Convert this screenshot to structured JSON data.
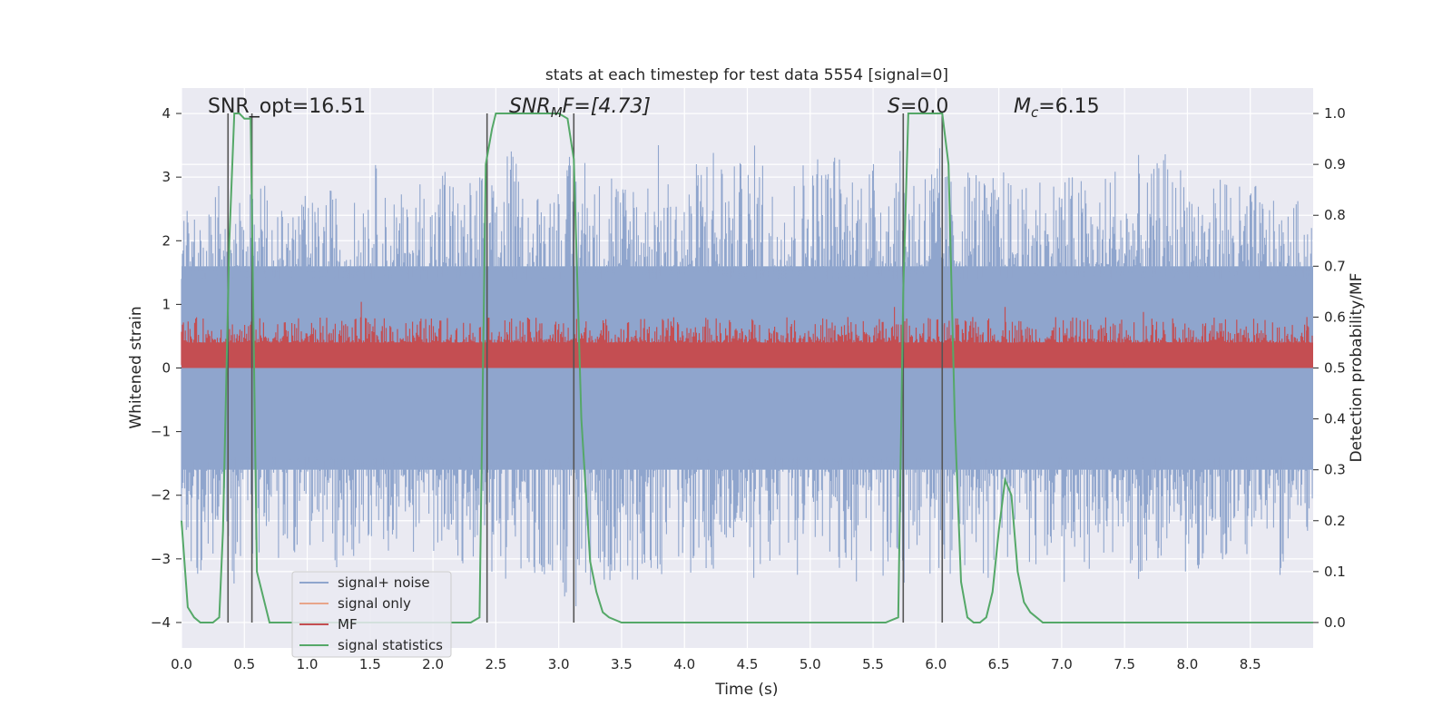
{
  "chart_data": {
    "type": "line",
    "title": "stats at each timestep for test data 5554 [signal=0]",
    "xlabel": "Time (s)",
    "ylabel_left": "Whitened strain",
    "ylabel_right": "Detection probability/MF",
    "xlim": [
      0.0,
      9.0
    ],
    "ylim_left": [
      -4.4,
      4.4
    ],
    "ylim_right": [
      -0.05,
      1.05
    ],
    "grid": true,
    "legend_position": "lower-left",
    "x_ticks": [
      "0.0",
      "0.5",
      "1.0",
      "1.5",
      "2.0",
      "2.5",
      "3.0",
      "3.5",
      "4.0",
      "4.5",
      "5.0",
      "5.5",
      "6.0",
      "6.5",
      "7.0",
      "7.5",
      "8.0",
      "8.5"
    ],
    "y_ticks_left": [
      "−4",
      "−3",
      "−2",
      "−1",
      "0",
      "1",
      "2",
      "3",
      "4"
    ],
    "y_ticks_right": [
      "0.0",
      "0.1",
      "0.2",
      "0.3",
      "0.4",
      "0.5",
      "0.6",
      "0.7",
      "0.8",
      "0.9",
      "1.0"
    ],
    "annotations": {
      "snr_opt": "SNR_opt=16.51",
      "snr_mf_base": "SNR",
      "snr_mf_sub": "M",
      "snr_mf_rest": "F=[4.73]",
      "s_base": "S",
      "s_rest": "=0.0",
      "mc_base": "M",
      "mc_sub": "c",
      "mc_rest": "=6.15"
    },
    "series": [
      {
        "name": "signal+ noise",
        "color": "#8fa5cd",
        "envelope_note": "noise samples, upper band",
        "band_upper": [
          [
            0.0,
            2.5
          ],
          [
            0.1,
            3.2
          ],
          [
            0.2,
            2.6
          ],
          [
            0.3,
            2.9
          ],
          [
            0.4,
            2.6
          ],
          [
            0.5,
            2.8
          ],
          [
            0.6,
            3.3
          ],
          [
            0.7,
            2.7
          ],
          [
            0.8,
            2.5
          ],
          [
            0.9,
            2.8
          ],
          [
            1.0,
            2.7
          ],
          [
            1.1,
            2.6
          ],
          [
            1.2,
            2.9
          ],
          [
            1.3,
            2.5
          ],
          [
            1.4,
            2.7
          ],
          [
            1.5,
            3.6
          ],
          [
            1.6,
            2.8
          ],
          [
            1.7,
            2.9
          ],
          [
            1.8,
            2.6
          ],
          [
            1.9,
            3.1
          ],
          [
            2.0,
            2.9
          ],
          [
            2.1,
            3.5
          ],
          [
            2.2,
            2.8
          ],
          [
            2.3,
            3.0
          ],
          [
            2.4,
            3.3
          ],
          [
            2.5,
            2.8
          ],
          [
            2.6,
            3.8
          ],
          [
            2.7,
            2.9
          ],
          [
            2.8,
            2.7
          ],
          [
            2.9,
            3.2
          ],
          [
            3.0,
            3.1
          ],
          [
            3.1,
            3.4
          ],
          [
            3.2,
            3.7
          ],
          [
            3.3,
            2.8
          ],
          [
            3.4,
            3.9
          ],
          [
            3.5,
            3.0
          ],
          [
            3.6,
            3.4
          ],
          [
            3.7,
            3.1
          ],
          [
            3.8,
            3.6
          ],
          [
            3.9,
            2.8
          ],
          [
            4.0,
            3.0
          ],
          [
            4.1,
            3.3
          ],
          [
            4.2,
            3.9
          ],
          [
            4.3,
            3.6
          ],
          [
            4.4,
            3.2
          ],
          [
            4.5,
            3.4
          ],
          [
            4.6,
            3.7
          ],
          [
            4.7,
            3.0
          ],
          [
            4.8,
            3.3
          ],
          [
            4.9,
            3.1
          ],
          [
            5.0,
            3.8
          ],
          [
            5.1,
            3.4
          ],
          [
            5.2,
            3.6
          ],
          [
            5.3,
            3.2
          ],
          [
            5.4,
            3.5
          ],
          [
            5.5,
            3.3
          ],
          [
            5.6,
            3.8
          ],
          [
            5.7,
            3.4
          ],
          [
            5.8,
            3.6
          ],
          [
            5.9,
            3.3
          ],
          [
            6.0,
            3.7
          ],
          [
            6.1,
            3.1
          ],
          [
            6.2,
            3.0
          ],
          [
            6.3,
            3.6
          ],
          [
            6.4,
            2.9
          ],
          [
            6.5,
            3.2
          ],
          [
            6.6,
            3.1
          ],
          [
            6.7,
            2.8
          ],
          [
            6.8,
            3.4
          ],
          [
            6.9,
            2.9
          ],
          [
            7.0,
            3.5
          ],
          [
            7.1,
            3.0
          ],
          [
            7.2,
            3.1
          ],
          [
            7.3,
            2.8
          ],
          [
            7.4,
            3.5
          ],
          [
            7.5,
            2.9
          ],
          [
            7.6,
            3.4
          ],
          [
            7.7,
            3.0
          ],
          [
            7.8,
            3.5
          ],
          [
            7.9,
            3.1
          ],
          [
            8.0,
            3.6
          ],
          [
            8.1,
            3.0
          ],
          [
            8.2,
            2.8
          ],
          [
            8.3,
            3.4
          ],
          [
            8.4,
            2.9
          ],
          [
            8.5,
            3.0
          ],
          [
            8.6,
            2.8
          ],
          [
            8.7,
            2.6
          ],
          [
            8.8,
            2.5
          ],
          [
            8.9,
            2.7
          ],
          [
            9.0,
            2.6
          ]
        ],
        "band_lower": [
          [
            0.0,
            -2.5
          ],
          [
            0.1,
            -3.2
          ],
          [
            0.2,
            -3.4
          ],
          [
            0.3,
            -3.1
          ],
          [
            0.4,
            -3.5
          ],
          [
            0.5,
            -2.9
          ],
          [
            0.6,
            -3.1
          ],
          [
            0.7,
            -2.6
          ],
          [
            0.8,
            -3.2
          ],
          [
            0.9,
            -2.9
          ],
          [
            1.0,
            -2.8
          ],
          [
            1.1,
            -3.0
          ],
          [
            1.2,
            -3.3
          ],
          [
            1.3,
            -3.1
          ],
          [
            1.4,
            -2.9
          ],
          [
            1.5,
            -2.7
          ],
          [
            1.6,
            -3.3
          ],
          [
            1.7,
            -2.7
          ],
          [
            1.8,
            -3.0
          ],
          [
            1.9,
            -2.8
          ],
          [
            2.0,
            -3.2
          ],
          [
            2.1,
            -2.6
          ],
          [
            2.2,
            -3.0
          ],
          [
            2.3,
            -3.5
          ],
          [
            2.4,
            -3.4
          ],
          [
            2.5,
            -3.2
          ],
          [
            2.6,
            -3.4
          ],
          [
            2.7,
            -3.6
          ],
          [
            2.8,
            -3.7
          ],
          [
            2.9,
            -3.3
          ],
          [
            3.0,
            -3.5
          ],
          [
            3.1,
            -4.0
          ],
          [
            3.2,
            -3.9
          ],
          [
            3.3,
            -3.6
          ],
          [
            3.4,
            -3.4
          ],
          [
            3.5,
            -3.2
          ],
          [
            3.6,
            -3.5
          ],
          [
            3.7,
            -3.1
          ],
          [
            3.8,
            -3.4
          ],
          [
            3.9,
            -3.0
          ],
          [
            4.0,
            -3.3
          ],
          [
            4.1,
            -3.2
          ],
          [
            4.2,
            -3.4
          ],
          [
            4.3,
            -3.0
          ],
          [
            4.4,
            -3.3
          ],
          [
            4.5,
            -3.5
          ],
          [
            4.6,
            -3.2
          ],
          [
            4.7,
            -3.4
          ],
          [
            4.8,
            -3.0
          ],
          [
            4.9,
            -3.3
          ],
          [
            5.0,
            -3.1
          ],
          [
            5.1,
            -3.4
          ],
          [
            5.2,
            -3.3
          ],
          [
            5.3,
            -3.2
          ],
          [
            5.4,
            -3.5
          ],
          [
            5.5,
            -3.2
          ],
          [
            5.6,
            -3.4
          ],
          [
            5.7,
            -3.8
          ],
          [
            5.8,
            -3.3
          ],
          [
            5.9,
            -3.6
          ],
          [
            6.0,
            -3.2
          ],
          [
            6.1,
            -3.5
          ],
          [
            6.2,
            -3.1
          ],
          [
            6.3,
            -3.3
          ],
          [
            6.4,
            -3.4
          ],
          [
            6.5,
            -3.0
          ],
          [
            6.6,
            -3.2
          ],
          [
            6.7,
            -3.0
          ],
          [
            6.8,
            -3.3
          ],
          [
            6.9,
            -3.1
          ],
          [
            7.0,
            -3.4
          ],
          [
            7.1,
            -3.2
          ],
          [
            7.2,
            -3.5
          ],
          [
            7.3,
            -3.0
          ],
          [
            7.4,
            -3.3
          ],
          [
            7.5,
            -3.1
          ],
          [
            7.6,
            -3.4
          ],
          [
            7.7,
            -3.2
          ],
          [
            7.8,
            -3.5
          ],
          [
            7.9,
            -3.0
          ],
          [
            8.0,
            -3.3
          ],
          [
            8.1,
            -3.2
          ],
          [
            8.2,
            -2.9
          ],
          [
            8.3,
            -3.1
          ],
          [
            8.4,
            -2.8
          ],
          [
            8.5,
            -3.0
          ],
          [
            8.6,
            -2.7
          ],
          [
            8.7,
            -3.2
          ],
          [
            8.8,
            -3.6
          ],
          [
            8.9,
            -2.8
          ],
          [
            9.0,
            -2.6
          ]
        ]
      },
      {
        "name": "signal only",
        "color": "#e8a58a",
        "values": []
      },
      {
        "name": "MF",
        "color": "#c44e52",
        "axis": "right",
        "band_upper_approx": 0.57,
        "band_lower_approx": 0.5,
        "peaks": [
          [
            0.37,
            0.62
          ],
          [
            1.43,
            0.63
          ],
          [
            3.12,
            0.61
          ],
          [
            5.3,
            0.6
          ],
          [
            5.67,
            0.62
          ],
          [
            6.55,
            0.62
          ],
          [
            7.65,
            0.61
          ],
          [
            8.95,
            0.6
          ]
        ]
      },
      {
        "name": "signal statistics",
        "color": "#55a868",
        "axis": "right",
        "x": [
          0.0,
          0.05,
          0.1,
          0.15,
          0.2,
          0.25,
          0.3,
          0.33,
          0.38,
          0.42,
          0.46,
          0.5,
          0.55,
          0.6,
          0.7,
          0.8,
          1.0,
          1.5,
          2.0,
          2.2,
          2.3,
          2.37,
          2.42,
          2.47,
          2.5,
          2.55,
          2.7,
          2.9,
          3.0,
          3.07,
          3.12,
          3.18,
          3.25,
          3.3,
          3.35,
          3.4,
          3.5,
          3.7,
          4.0,
          4.5,
          5.0,
          5.5,
          5.6,
          5.7,
          5.74,
          5.78,
          5.82,
          5.87,
          6.0,
          6.05,
          6.1,
          6.15,
          6.2,
          6.25,
          6.3,
          6.35,
          6.4,
          6.45,
          6.5,
          6.55,
          6.6,
          6.65,
          6.7,
          6.75,
          6.8,
          6.85,
          6.9,
          7.0,
          7.5,
          8.0,
          8.5,
          9.0
        ],
        "values": [
          0.2,
          0.03,
          0.01,
          0.0,
          0.0,
          0.0,
          0.01,
          0.18,
          0.75,
          1.0,
          1.0,
          0.99,
          0.99,
          0.1,
          0.0,
          0.0,
          0.0,
          0.0,
          0.0,
          0.0,
          0.0,
          0.01,
          0.9,
          0.97,
          1.0,
          1.0,
          1.0,
          1.0,
          1.0,
          0.99,
          0.91,
          0.4,
          0.12,
          0.06,
          0.02,
          0.01,
          0.0,
          0.0,
          0.0,
          0.0,
          0.0,
          0.0,
          0.0,
          0.01,
          0.65,
          1.0,
          1.0,
          1.0,
          1.0,
          1.0,
          0.9,
          0.4,
          0.08,
          0.01,
          0.0,
          0.0,
          0.01,
          0.06,
          0.18,
          0.28,
          0.25,
          0.1,
          0.04,
          0.02,
          0.01,
          0.0,
          0.0,
          0.0,
          0.0,
          0.0,
          0.0,
          0.0
        ]
      }
    ],
    "vertical_markers_x": [
      0.37,
      0.56,
      2.43,
      3.12,
      5.74,
      6.05
    ]
  }
}
